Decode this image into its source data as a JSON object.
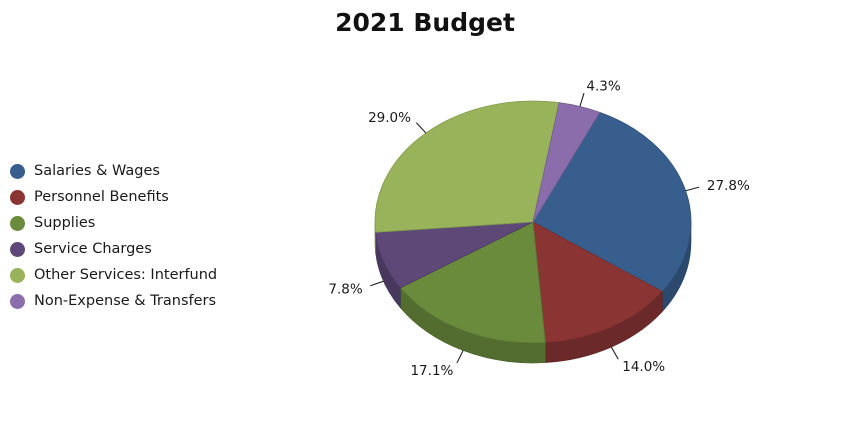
{
  "chart_data": {
    "type": "pie",
    "title": "2021 Budget",
    "legend_position": "left",
    "slices": [
      {
        "name": "Salaries & Wages",
        "value": 27.8,
        "label": "27.8%",
        "color": "#375E8C"
      },
      {
        "name": "Personnel Benefits",
        "value": 14.0,
        "label": "14.0%",
        "color": "#8B3434"
      },
      {
        "name": "Supplies",
        "value": 17.1,
        "label": "17.1%",
        "color": "#6A8A3C"
      },
      {
        "name": "Service Charges",
        "value": 7.8,
        "label": "7.8%",
        "color": "#5E4878"
      },
      {
        "name": "Other Services:  Interfund",
        "value": 29.0,
        "label": "29.0%",
        "color": "#98B35A"
      },
      {
        "name": "Non-Expense & Transfers",
        "value": 4.3,
        "label": "4.3%",
        "color": "#8A6DAA"
      }
    ]
  }
}
